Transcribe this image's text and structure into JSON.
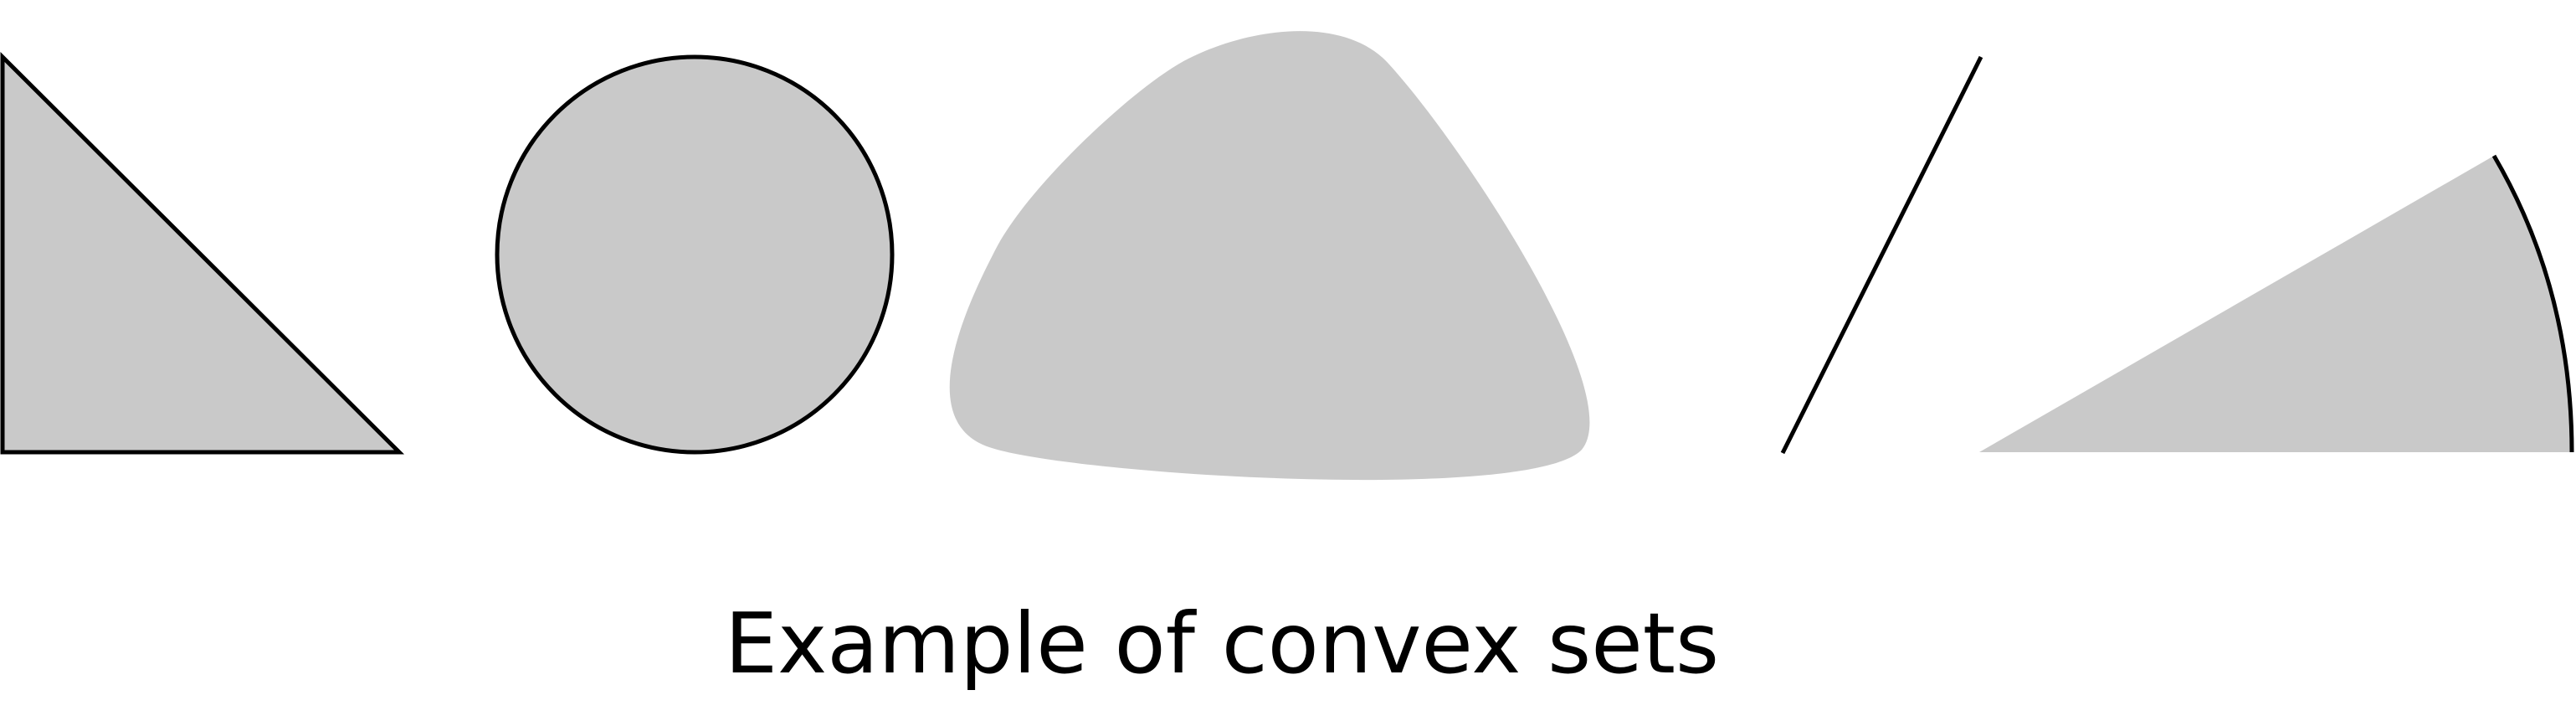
{
  "caption": "Example of convex sets",
  "colors": {
    "fill": "#c9c9c9",
    "outline": "#000000",
    "background": "#ffffff"
  },
  "shapes": [
    {
      "name": "triangle",
      "filled": true,
      "outlined": true
    },
    {
      "name": "circle",
      "filled": true,
      "outlined": true
    },
    {
      "name": "rounded-blob",
      "filled": true,
      "outlined": false
    },
    {
      "name": "line-segment",
      "filled": false,
      "outlined": true
    },
    {
      "name": "circular-sector",
      "filled": true,
      "outlined": "arc-only"
    }
  ]
}
